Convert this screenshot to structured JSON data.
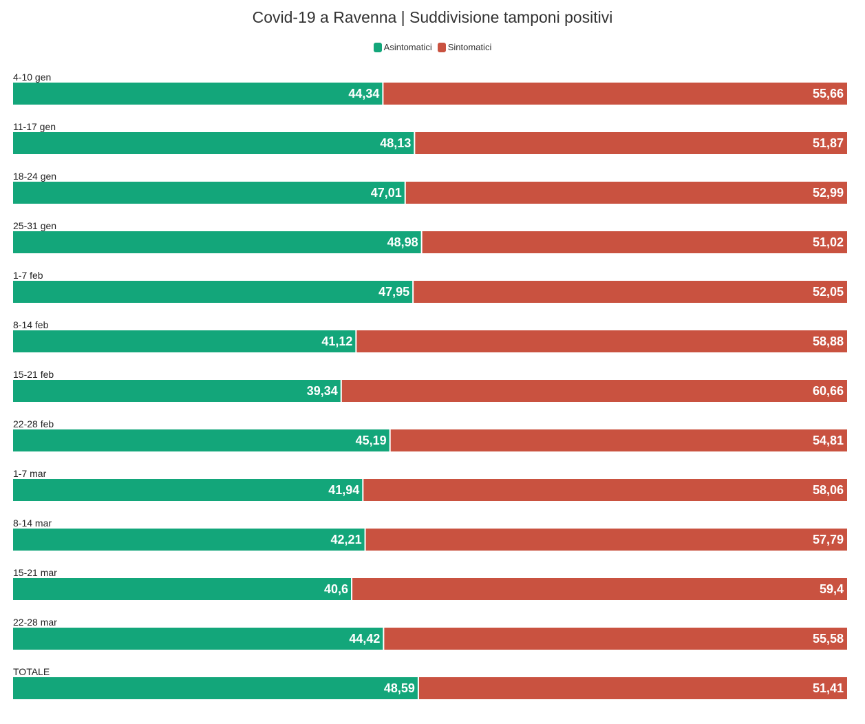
{
  "chart_data": {
    "type": "bar",
    "orientation": "horizontal",
    "stacked": true,
    "title": "Covid-19 a Ravenna | Suddivisione tamponi positivi",
    "categories": [
      "4-10 gen",
      "11-17 gen",
      "18-24 gen",
      "25-31 gen",
      "1-7 feb",
      "8-14 feb",
      "15-21 feb",
      "22-28 feb",
      "1-7 mar",
      "8-14 mar",
      "15-21 mar",
      "22-28 mar",
      "TOTALE"
    ],
    "value_labels": {
      "series_0": [
        "44,34",
        "48,13",
        "47,01",
        "48,98",
        "47,95",
        "41,12",
        "39,34",
        "45,19",
        "41,94",
        "42,21",
        "40,6",
        "44,42",
        "48,59"
      ],
      "series_1": [
        "55,66",
        "51,87",
        "52,99",
        "51,02",
        "52,05",
        "58,88",
        "60,66",
        "54,81",
        "58,06",
        "57,79",
        "59,4",
        "55,58",
        "51,41"
      ]
    },
    "series": [
      {
        "name": "Asintomatici",
        "color": "#13a67a",
        "values": [
          44.34,
          48.13,
          47.01,
          48.98,
          47.95,
          41.12,
          39.34,
          45.19,
          41.94,
          42.21,
          40.6,
          44.42,
          48.59
        ]
      },
      {
        "name": "Sintomatici",
        "color": "#c95240",
        "values": [
          55.66,
          51.87,
          52.99,
          51.02,
          52.05,
          58.88,
          60.66,
          54.81,
          58.06,
          57.79,
          59.4,
          55.58,
          51.41
        ]
      }
    ],
    "xlim": [
      0,
      100
    ],
    "legend_position": "top-center",
    "grid": false
  }
}
